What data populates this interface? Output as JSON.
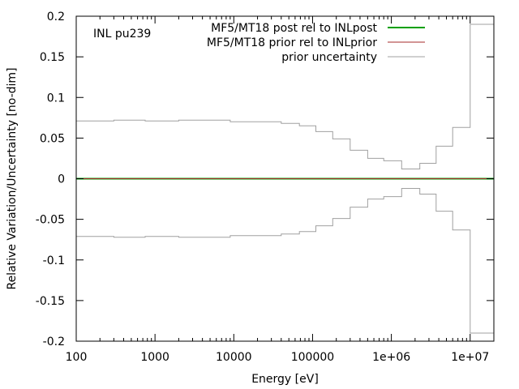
{
  "chart_data": {
    "type": "line",
    "annotation": "INL pu239",
    "xlabel": "Energy [eV]",
    "ylabel": "Relative Variation/Uncertainty [no-dim]",
    "xscale": "log",
    "xlim": [
      100,
      20000000
    ],
    "ylim": [
      -0.2,
      0.2
    ],
    "grid": false,
    "legend_position": "top-right",
    "x_ticks": [
      {
        "value": 100,
        "label": "100"
      },
      {
        "value": 1000,
        "label": "1000"
      },
      {
        "value": 10000,
        "label": "10000"
      },
      {
        "value": 100000,
        "label": "100000"
      },
      {
        "value": 1000000,
        "label": "1e+06"
      },
      {
        "value": 10000000,
        "label": "1e+07"
      }
    ],
    "y_ticks": [
      {
        "value": 0.2,
        "label": "0.2"
      },
      {
        "value": 0.15,
        "label": "0.15"
      },
      {
        "value": 0.1,
        "label": "0.1"
      },
      {
        "value": 0.05,
        "label": "0.05"
      },
      {
        "value": 0,
        "label": "0"
      },
      {
        "value": -0.05,
        "label": "-0.05"
      },
      {
        "value": -0.1,
        "label": "-0.1"
      },
      {
        "value": -0.15,
        "label": "-0.15"
      },
      {
        "value": -0.2,
        "label": "-0.2"
      }
    ],
    "bin_edges": [
      100,
      300,
      750,
      2000,
      9000,
      40000,
      68000,
      110000,
      180000,
      300000,
      500000,
      800000,
      1350000,
      2300000,
      3700000,
      6000000,
      10000000,
      20000000
    ],
    "series": [
      {
        "name": "MF5/MT18 post rel to INLpost",
        "color": "#00a000",
        "step_values": [
          0,
          0,
          0,
          0,
          0,
          0,
          0,
          0,
          0,
          0,
          0,
          0,
          0,
          0,
          0,
          0,
          0
        ]
      },
      {
        "name": "MF5/MT18 prior rel to INLprior",
        "color": "#a52a2a",
        "step_values": [
          0,
          0,
          0,
          0,
          0,
          0,
          0,
          0,
          0,
          0,
          0,
          0,
          0,
          0,
          0,
          0,
          0
        ]
      },
      {
        "name": "prior uncertainty",
        "color": "#a0a0a0",
        "symmetric": true,
        "step_values": [
          0.071,
          0.072,
          0.071,
          0.072,
          0.07,
          0.068,
          0.065,
          0.058,
          0.049,
          0.035,
          0.025,
          0.022,
          0.012,
          0.019,
          0.04,
          0.063,
          0.19
        ]
      }
    ]
  }
}
